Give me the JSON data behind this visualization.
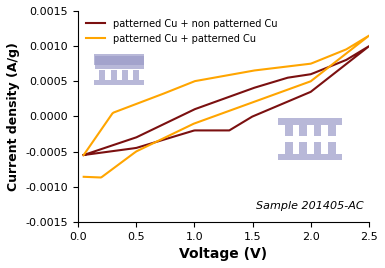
{
  "title": "",
  "xlabel": "Voltage (V)",
  "ylabel": "Current density (A/g)",
  "xlim": [
    0,
    2.5
  ],
  "ylim": [
    -0.0015,
    0.0015
  ],
  "xticks": [
    0.0,
    0.5,
    1.0,
    1.5,
    2.0,
    2.5
  ],
  "yticks": [
    -0.0015,
    -0.001,
    -0.0005,
    0.0,
    0.0005,
    0.001,
    0.0015
  ],
  "legend1": "patterned Cu + non patterned Cu",
  "legend2": "patterned Cu + patterned Cu",
  "color1": "#7B1010",
  "color2": "#FFA500",
  "annotation": "Sample 201405-AC",
  "bg_color": "#FFFFFF",
  "electrode_color": "#9B9BC8"
}
